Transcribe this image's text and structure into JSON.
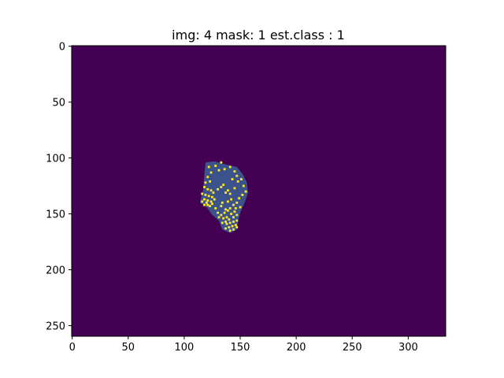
{
  "chart_data": {
    "type": "heatmap",
    "title": "img: 4 mask: 1 est.class : 1",
    "xlabel": "",
    "ylabel": "",
    "image_size": {
      "columns": 334,
      "rows": 260
    },
    "xlim": [
      -0.5,
      333.5
    ],
    "ylim": [
      259.5,
      -0.5
    ],
    "y_axis_inverted": true,
    "grid": false,
    "colormap": "viridis",
    "x_ticks": [
      0,
      50,
      100,
      150,
      200,
      250,
      300
    ],
    "y_ticks": [
      0,
      50,
      100,
      150,
      200,
      250
    ],
    "x_tick_labels": [
      "0",
      "50",
      "100",
      "150",
      "200",
      "250",
      "300"
    ],
    "y_tick_labels": [
      "0",
      "50",
      "100",
      "150",
      "200",
      "250"
    ],
    "value_colors": {
      "background": "#440154",
      "region": "#3b528b",
      "highlight": "#fde725"
    },
    "region_outline": [
      [
        119,
        104
      ],
      [
        127,
        103
      ],
      [
        138,
        106
      ],
      [
        147,
        108
      ],
      [
        152,
        114
      ],
      [
        156,
        122
      ],
      [
        157,
        131
      ],
      [
        154,
        140
      ],
      [
        150,
        149
      ],
      [
        148,
        157
      ],
      [
        147,
        164
      ],
      [
        141,
        167
      ],
      [
        134,
        164
      ],
      [
        131,
        156
      ],
      [
        125,
        151
      ],
      [
        120,
        144
      ],
      [
        114,
        140
      ],
      [
        117,
        128
      ],
      [
        118,
        114
      ]
    ],
    "highlight_points": [
      [
        122,
        108
      ],
      [
        128,
        107
      ],
      [
        131,
        111
      ],
      [
        133,
        104
      ],
      [
        124,
        113
      ],
      [
        121,
        117
      ],
      [
        119,
        122
      ],
      [
        123,
        121
      ],
      [
        118,
        126
      ],
      [
        121,
        128
      ],
      [
        124,
        129
      ],
      [
        116,
        132
      ],
      [
        119,
        133
      ],
      [
        122,
        134
      ],
      [
        125,
        135
      ],
      [
        118,
        137
      ],
      [
        121,
        138
      ],
      [
        116,
        139
      ],
      [
        120,
        140
      ],
      [
        124,
        139
      ],
      [
        127,
        137
      ],
      [
        118,
        142
      ],
      [
        121,
        142
      ],
      [
        125,
        141
      ],
      [
        123,
        143
      ],
      [
        126,
        131
      ],
      [
        130,
        128
      ],
      [
        133,
        126
      ],
      [
        135,
        124
      ],
      [
        139,
        129
      ],
      [
        141,
        132
      ],
      [
        137,
        131
      ],
      [
        145,
        127
      ],
      [
        148,
        121
      ],
      [
        143,
        119
      ],
      [
        147,
        116
      ],
      [
        151,
        119
      ],
      [
        153,
        125
      ],
      [
        155,
        130
      ],
      [
        152,
        133
      ],
      [
        145,
        112
      ],
      [
        141,
        108
      ],
      [
        136,
        110
      ],
      [
        149,
        136
      ],
      [
        147,
        140
      ],
      [
        144,
        142
      ],
      [
        141,
        145
      ],
      [
        137,
        146
      ],
      [
        133,
        143
      ],
      [
        139,
        139
      ],
      [
        142,
        137
      ],
      [
        136,
        149
      ],
      [
        133,
        151
      ],
      [
        131,
        153
      ],
      [
        135,
        154
      ],
      [
        138,
        153
      ],
      [
        142,
        150
      ],
      [
        145,
        148
      ],
      [
        147,
        151
      ],
      [
        144,
        153
      ],
      [
        140,
        155
      ],
      [
        137,
        157
      ],
      [
        134,
        158
      ],
      [
        138,
        159
      ],
      [
        141,
        158
      ],
      [
        144,
        157
      ],
      [
        147,
        156
      ],
      [
        146,
        160
      ],
      [
        143,
        161
      ],
      [
        140,
        162
      ],
      [
        137,
        163
      ],
      [
        141,
        165
      ],
      [
        144,
        164
      ],
      [
        147,
        162
      ],
      [
        139,
        147
      ],
      [
        128,
        145
      ],
      [
        130,
        149
      ],
      [
        150,
        144
      ],
      [
        146,
        145
      ],
      [
        134,
        140
      ]
    ]
  }
}
